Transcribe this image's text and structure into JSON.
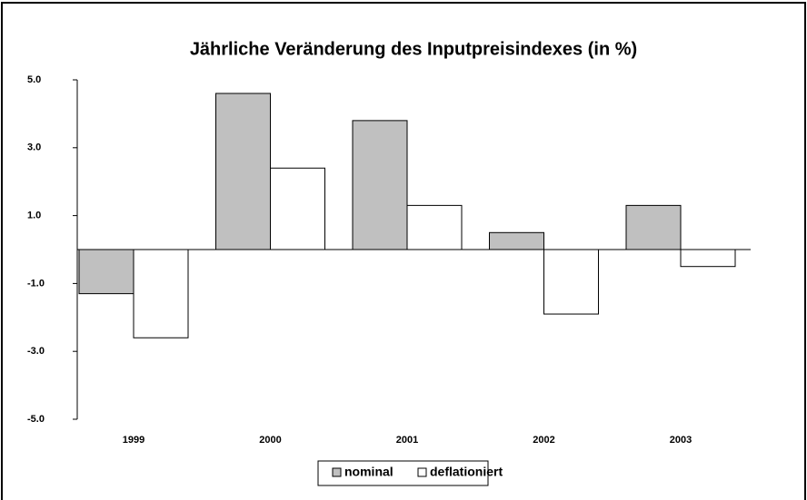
{
  "chart_data": {
    "type": "bar",
    "title": "Jährliche Veränderung des Inputpreisindexes (in %)",
    "categories": [
      "1999",
      "2000",
      "2001",
      "2002",
      "2003"
    ],
    "series": [
      {
        "name": "nominal",
        "color": "#c0c0c0",
        "values": [
          -1.3,
          4.6,
          3.8,
          0.5,
          1.3
        ]
      },
      {
        "name": "deflationiert",
        "color": "#ffffff",
        "values": [
          -2.6,
          2.4,
          1.3,
          -1.9,
          -0.5
        ]
      }
    ],
    "ylim": [
      -5,
      5
    ],
    "yticks": [
      {
        "value": -5,
        "label": "-5.0"
      },
      {
        "value": -3,
        "label": "-3.0"
      },
      {
        "value": -1,
        "label": "-1.0"
      },
      {
        "value": 1,
        "label": "1.0"
      },
      {
        "value": 3,
        "label": "3.0"
      },
      {
        "value": 5,
        "label": "5.0"
      }
    ],
    "legend": "bottom"
  }
}
